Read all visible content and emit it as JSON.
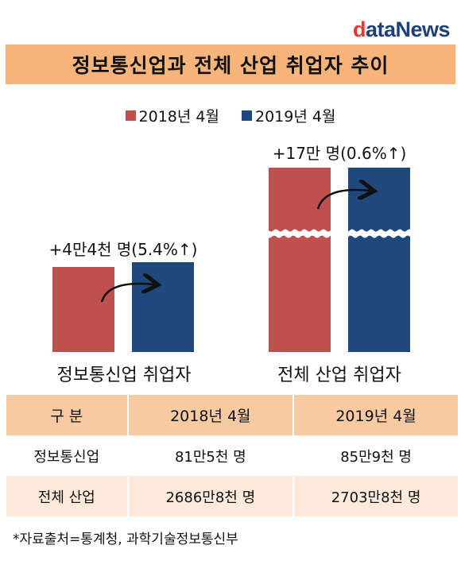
{
  "logo": {
    "first_letter": "d",
    "rest": "ataNews"
  },
  "title": "정보통신업과 전체 산업 취업자 추이",
  "legend": [
    {
      "label": "2018년 4월",
      "color": "#c0504d"
    },
    {
      "label": "2019년 4월",
      "color": "#1f497d"
    }
  ],
  "chart_data": {
    "type": "bar",
    "series": [
      {
        "name": "2018년 4월",
        "color": "#c0504d"
      },
      {
        "name": "2019년 4월",
        "color": "#1f497d"
      }
    ],
    "groups": [
      {
        "category": "정보통신업 취업자",
        "values": [
          "81만5천 명",
          "85만9천 명"
        ],
        "values_numeric": [
          815000,
          859000
        ],
        "change": "+4만4천 명(5.4%↑)",
        "axis_break": false
      },
      {
        "category": "전체 산업 취업자",
        "values": [
          "2686만8천 명",
          "2703만8천 명"
        ],
        "values_numeric": [
          26868000,
          27038000
        ],
        "change": "+17만 명(0.6%↑)",
        "axis_break": true
      }
    ]
  },
  "table": {
    "headers": [
      "구  분",
      "2018년 4월",
      "2019년 4월"
    ],
    "rows": [
      [
        "정보통신업",
        "81만5천 명",
        "85만9천 명"
      ],
      [
        "전체 산업",
        "2686만8천 명",
        "2703만8천 명"
      ]
    ]
  },
  "source": "*자료출처=통계청, 과학기술정보통신부"
}
